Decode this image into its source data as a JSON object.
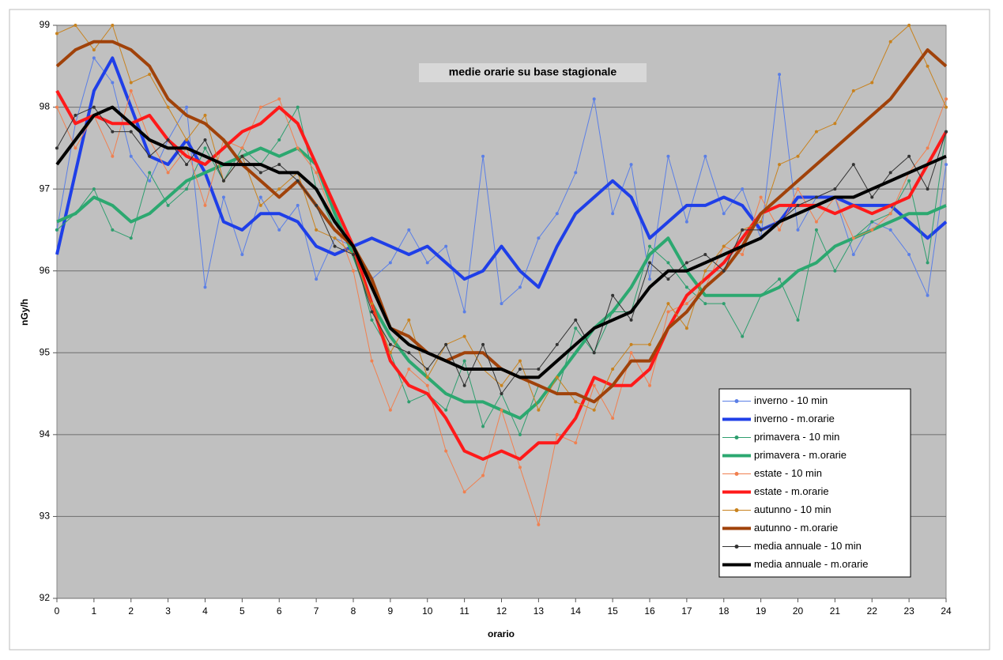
{
  "chart_data": {
    "type": "line",
    "title": "medie orarie su base stagionale",
    "xlabel": "orario",
    "ylabel": "nGy/h",
    "xlim": [
      0,
      24
    ],
    "xticks": [
      0,
      1,
      2,
      3,
      4,
      5,
      6,
      7,
      8,
      9,
      10,
      11,
      12,
      13,
      14,
      15,
      16,
      17,
      18,
      19,
      20,
      21,
      22,
      23,
      24
    ],
    "ylim": [
      92,
      99
    ],
    "yticks": [
      92,
      93,
      94,
      95,
      96,
      97,
      98,
      99
    ],
    "grid": true,
    "legend": "lower right",
    "x": [
      0,
      0.5,
      1,
      1.5,
      2,
      2.5,
      3,
      3.5,
      4,
      4.5,
      5,
      5.5,
      6,
      6.5,
      7,
      7.5,
      8,
      8.5,
      9,
      9.5,
      10,
      10.5,
      11,
      11.5,
      12,
      12.5,
      13,
      13.5,
      14,
      14.5,
      15,
      15.5,
      16,
      16.5,
      17,
      17.5,
      18,
      18.5,
      19,
      19.5,
      20,
      20.5,
      21,
      21.5,
      22,
      22.5,
      23,
      23.5,
      24
    ],
    "series": [
      {
        "name": "inverno - 10 min",
        "color": "#5b7fe6",
        "line_width": 1,
        "marker": true,
        "values": [
          96.5,
          97.8,
          98.6,
          98.3,
          97.4,
          97.1,
          97.6,
          98.0,
          95.8,
          96.9,
          96.2,
          96.9,
          96.5,
          96.8,
          95.9,
          96.4,
          96.3,
          95.9,
          96.1,
          96.5,
          96.1,
          96.3,
          95.5,
          97.4,
          95.6,
          95.8,
          96.4,
          96.7,
          97.2,
          98.1,
          96.7,
          97.3,
          95.9,
          97.4,
          96.6,
          97.4,
          96.7,
          97.0,
          96.4,
          98.4,
          96.5,
          96.9,
          96.9,
          96.2,
          96.6,
          96.5,
          96.2,
          95.7,
          97.3
        ]
      },
      {
        "name": "inverno - m.orarie",
        "color": "#1f3fe8",
        "line_width": 4,
        "marker": false,
        "values": [
          96.2,
          97.2,
          98.2,
          98.6,
          98.0,
          97.4,
          97.3,
          97.6,
          97.2,
          96.6,
          96.5,
          96.7,
          96.7,
          96.6,
          96.3,
          96.2,
          96.3,
          96.4,
          96.3,
          96.2,
          96.3,
          96.1,
          95.9,
          96.0,
          96.3,
          96.0,
          95.8,
          96.3,
          96.7,
          96.9,
          97.1,
          96.9,
          96.4,
          96.6,
          96.8,
          96.8,
          96.9,
          96.8,
          96.5,
          96.6,
          96.9,
          96.9,
          96.9,
          96.8,
          96.8,
          96.8,
          96.6,
          96.4,
          96.6
        ]
      },
      {
        "name": "primavera - 10 min",
        "color": "#2e9e6e",
        "line_width": 1,
        "marker": true,
        "values": [
          96.5,
          96.7,
          97.0,
          96.5,
          96.4,
          97.2,
          96.8,
          97.0,
          97.5,
          97.1,
          97.5,
          97.3,
          97.6,
          98.0,
          97.0,
          96.5,
          96.3,
          95.4,
          95.0,
          94.4,
          94.5,
          94.3,
          94.9,
          94.1,
          94.5,
          94.0,
          94.6,
          94.5,
          95.3,
          95.0,
          95.5,
          95.5,
          96.3,
          96.1,
          95.8,
          95.6,
          95.6,
          95.2,
          95.7,
          95.9,
          95.4,
          96.5,
          96.0,
          96.4,
          96.6,
          96.7,
          97.1,
          96.1,
          97.7
        ]
      },
      {
        "name": "primavera - m.orarie",
        "color": "#2ca870",
        "line_width": 4,
        "marker": false,
        "values": [
          96.6,
          96.7,
          96.9,
          96.8,
          96.6,
          96.7,
          96.9,
          97.1,
          97.2,
          97.3,
          97.4,
          97.5,
          97.4,
          97.5,
          97.3,
          96.7,
          96.2,
          95.6,
          95.2,
          94.9,
          94.7,
          94.5,
          94.4,
          94.4,
          94.3,
          94.2,
          94.4,
          94.7,
          95.0,
          95.3,
          95.5,
          95.8,
          96.2,
          96.4,
          96.0,
          95.7,
          95.7,
          95.7,
          95.7,
          95.8,
          96.0,
          96.1,
          96.3,
          96.4,
          96.5,
          96.6,
          96.7,
          96.7,
          96.8
        ]
      },
      {
        "name": "estate - 10 min",
        "color": "#f08050",
        "line_width": 1,
        "marker": true,
        "values": [
          98.0,
          97.5,
          97.9,
          97.4,
          98.2,
          97.6,
          97.2,
          97.5,
          96.8,
          97.6,
          97.5,
          98.0,
          98.1,
          97.5,
          97.2,
          96.6,
          96.0,
          94.9,
          94.3,
          94.8,
          94.6,
          93.8,
          93.3,
          93.5,
          94.3,
          93.6,
          92.9,
          94.0,
          93.9,
          94.6,
          94.2,
          95.0,
          94.6,
          95.5,
          95.6,
          95.8,
          96.3,
          96.2,
          96.9,
          96.5,
          97.0,
          96.6,
          96.9,
          96.4,
          96.5,
          96.7,
          97.2,
          97.5,
          98.1
        ]
      },
      {
        "name": "estate - m.orarie",
        "color": "#ff1a1a",
        "line_width": 4,
        "marker": false,
        "values": [
          98.2,
          97.8,
          97.9,
          97.8,
          97.8,
          97.9,
          97.6,
          97.4,
          97.3,
          97.5,
          97.7,
          97.8,
          98.0,
          97.8,
          97.3,
          96.8,
          96.3,
          95.6,
          94.9,
          94.6,
          94.5,
          94.2,
          93.8,
          93.7,
          93.8,
          93.7,
          93.9,
          93.9,
          94.2,
          94.7,
          94.6,
          94.6,
          94.8,
          95.3,
          95.7,
          95.9,
          96.1,
          96.4,
          96.7,
          96.8,
          96.8,
          96.8,
          96.7,
          96.8,
          96.7,
          96.8,
          96.9,
          97.3,
          97.7
        ]
      },
      {
        "name": "autunno - 10 min",
        "color": "#c8821e",
        "line_width": 1,
        "marker": true,
        "values": [
          98.9,
          99.0,
          98.7,
          99.0,
          98.3,
          98.4,
          98.0,
          97.6,
          97.9,
          97.1,
          97.4,
          96.8,
          97.0,
          97.2,
          96.5,
          96.4,
          96.2,
          95.6,
          95.0,
          95.4,
          94.7,
          95.1,
          95.2,
          94.8,
          94.6,
          94.9,
          94.3,
          94.7,
          94.4,
          94.3,
          94.8,
          95.1,
          95.1,
          95.6,
          95.3,
          96.0,
          96.3,
          96.5,
          96.6,
          97.3,
          97.4,
          97.7,
          97.8,
          98.2,
          98.3,
          98.8,
          99.0,
          98.5,
          98.0
        ]
      },
      {
        "name": "autunno - m.orarie",
        "color": "#a0420a",
        "line_width": 4,
        "marker": false,
        "values": [
          98.5,
          98.7,
          98.8,
          98.8,
          98.7,
          98.5,
          98.1,
          97.9,
          97.8,
          97.6,
          97.3,
          97.1,
          96.9,
          97.1,
          96.8,
          96.5,
          96.3,
          95.9,
          95.3,
          95.2,
          95.0,
          94.9,
          95.0,
          95.0,
          94.8,
          94.7,
          94.6,
          94.5,
          94.5,
          94.4,
          94.6,
          94.9,
          94.9,
          95.3,
          95.5,
          95.8,
          96.0,
          96.3,
          96.7,
          96.9,
          97.1,
          97.3,
          97.5,
          97.7,
          97.9,
          98.1,
          98.4,
          98.7,
          98.5
        ]
      },
      {
        "name": "media annuale - 10 min",
        "color": "#333333",
        "line_width": 1,
        "marker": true,
        "values": [
          97.5,
          97.9,
          98.0,
          97.7,
          97.7,
          97.4,
          97.6,
          97.3,
          97.6,
          97.1,
          97.4,
          97.2,
          97.3,
          97.1,
          96.8,
          96.3,
          96.2,
          95.5,
          95.1,
          95.0,
          94.8,
          95.1,
          94.6,
          95.1,
          94.5,
          94.8,
          94.8,
          95.1,
          95.4,
          95.0,
          95.7,
          95.4,
          96.1,
          95.9,
          96.1,
          96.2,
          96.0,
          96.5,
          96.5,
          96.6,
          96.8,
          96.9,
          97.0,
          97.3,
          96.9,
          97.2,
          97.4,
          97.0,
          97.7
        ]
      },
      {
        "name": "media annuale - m.orarie",
        "color": "#000000",
        "line_width": 4,
        "marker": false,
        "values": [
          97.3,
          97.6,
          97.9,
          98.0,
          97.8,
          97.6,
          97.5,
          97.5,
          97.4,
          97.3,
          97.3,
          97.3,
          97.2,
          97.2,
          97.0,
          96.6,
          96.3,
          95.8,
          95.3,
          95.1,
          95.0,
          94.9,
          94.8,
          94.8,
          94.8,
          94.7,
          94.7,
          94.9,
          95.1,
          95.3,
          95.4,
          95.5,
          95.8,
          96.0,
          96.0,
          96.1,
          96.2,
          96.3,
          96.4,
          96.6,
          96.7,
          96.8,
          96.9,
          96.9,
          97.0,
          97.1,
          97.2,
          97.3,
          97.4
        ]
      }
    ]
  }
}
